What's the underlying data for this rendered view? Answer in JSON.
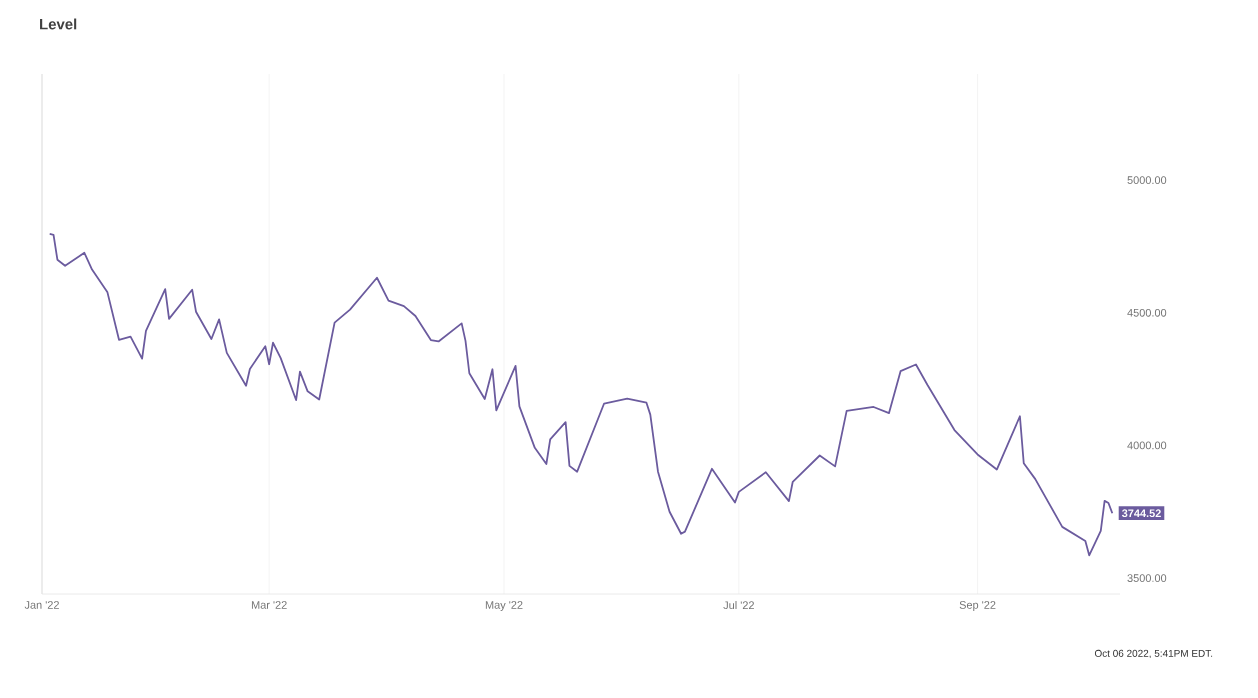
{
  "chart_data": {
    "type": "line",
    "title": "Level",
    "x": [
      "2022-01-03",
      "2022-01-04",
      "2022-01-05",
      "2022-01-07",
      "2022-01-12",
      "2022-01-14",
      "2022-01-18",
      "2022-01-21",
      "2022-01-24",
      "2022-01-27",
      "2022-01-28",
      "2022-02-02",
      "2022-02-03",
      "2022-02-09",
      "2022-02-10",
      "2022-02-14",
      "2022-02-16",
      "2022-02-18",
      "2022-02-23",
      "2022-02-24",
      "2022-02-28",
      "2022-03-01",
      "2022-03-02",
      "2022-03-04",
      "2022-03-08",
      "2022-03-09",
      "2022-03-11",
      "2022-03-14",
      "2022-03-18",
      "2022-03-22",
      "2022-03-29",
      "2022-04-01",
      "2022-04-05",
      "2022-04-08",
      "2022-04-12",
      "2022-04-14",
      "2022-04-20",
      "2022-04-21",
      "2022-04-22",
      "2022-04-26",
      "2022-04-28",
      "2022-04-29",
      "2022-05-04",
      "2022-05-05",
      "2022-05-09",
      "2022-05-12",
      "2022-05-13",
      "2022-05-17",
      "2022-05-18",
      "2022-05-20",
      "2022-05-27",
      "2022-06-02",
      "2022-06-07",
      "2022-06-08",
      "2022-06-10",
      "2022-06-13",
      "2022-06-16",
      "2022-06-17",
      "2022-06-24",
      "2022-06-30",
      "2022-07-01",
      "2022-07-08",
      "2022-07-14",
      "2022-07-15",
      "2022-07-22",
      "2022-07-26",
      "2022-07-29",
      "2022-08-05",
      "2022-08-09",
      "2022-08-12",
      "2022-08-16",
      "2022-08-19",
      "2022-08-26",
      "2022-09-01",
      "2022-09-06",
      "2022-09-12",
      "2022-09-13",
      "2022-09-16",
      "2022-09-23",
      "2022-09-29",
      "2022-09-30",
      "2022-10-03",
      "2022-10-04",
      "2022-10-05",
      "2022-10-06"
    ],
    "series": [
      {
        "color": "#6b5b9e",
        "values": [
          4797,
          4794,
          4700,
          4677,
          4726,
          4663,
          4577,
          4398,
          4410,
          4327,
          4432,
          4589,
          4477,
          4587,
          4504,
          4401,
          4475,
          4349,
          4225,
          4288,
          4374,
          4306,
          4387,
          4329,
          4171,
          4278,
          4204,
          4173,
          4463,
          4512,
          4632,
          4546,
          4525,
          4488,
          4397,
          4392,
          4460,
          4394,
          4272,
          4175,
          4287,
          4132,
          4300,
          4147,
          3991,
          3930,
          4023,
          4088,
          3923,
          3901,
          4158,
          4176,
          4161,
          4116,
          3901,
          3750,
          3667,
          3675,
          3912,
          3785,
          3825,
          3899,
          3790,
          3863,
          3962,
          3921,
          4130,
          4145,
          4122,
          4280,
          4305,
          4228,
          4058,
          3966,
          3909,
          4110,
          3933,
          3873,
          3693,
          3640,
          3586,
          3678,
          3791,
          3783,
          3744.52
        ]
      }
    ],
    "xlim": [
      "2022-01-01",
      "2022-10-08"
    ],
    "xticks": [
      {
        "value": "2022-01-01",
        "label": "Jan '22"
      },
      {
        "value": "2022-03-01",
        "label": "Mar '22"
      },
      {
        "value": "2022-05-01",
        "label": "May '22"
      },
      {
        "value": "2022-07-01",
        "label": "Jul '22"
      },
      {
        "value": "2022-09-01",
        "label": "Sep '22"
      }
    ],
    "ylim": [
      3440,
      5400
    ],
    "yticks": [
      {
        "value": 3500,
        "label": "3500.00"
      },
      {
        "value": 4000,
        "label": "4000.00"
      },
      {
        "value": 4500,
        "label": "4500.00"
      },
      {
        "value": 5000,
        "label": "5000.00"
      }
    ],
    "grid": "x",
    "marker": "none",
    "line_style": "solid",
    "annotations": [
      {
        "text": "3744.52",
        "x": "2022-10-06",
        "y": 3744.52
      },
      "Oct 06 2022, 5:41PM EDT."
    ]
  }
}
